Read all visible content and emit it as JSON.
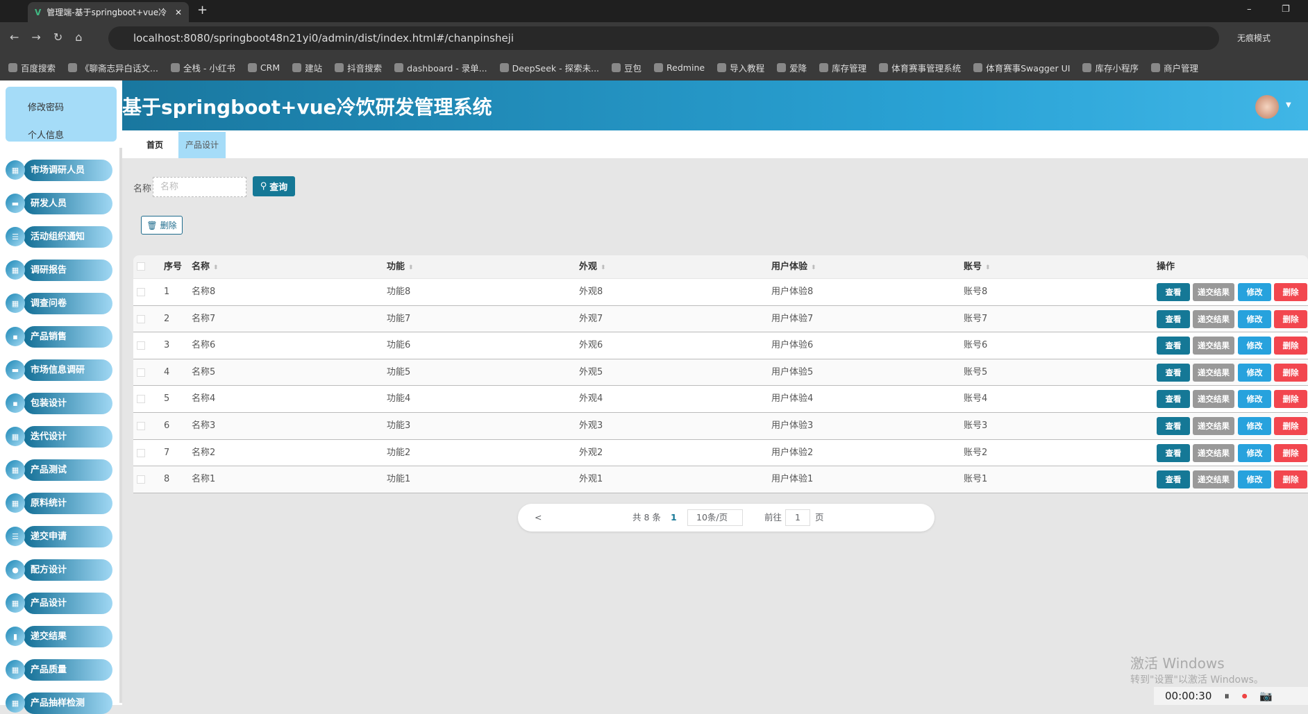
{
  "browser": {
    "tab_title": "管理端-基于springboot+vue冷",
    "url": "localhost:8080/springboot48n21yi0/admin/dist/index.html#/chanpinsheji",
    "incognito": "无痕模式",
    "bookmarks": [
      "百度搜索",
      "《聊斋志异白话文...",
      "全栈 - 小红书",
      "CRM",
      "建站",
      "抖音搜索",
      "dashboard - 录单...",
      "DeepSeek - 探索未...",
      "豆包",
      "Redmine",
      "导入教程",
      "爱降",
      "库存管理",
      "体育赛事管理系统",
      "体育赛事Swagger UI",
      "库存小程序",
      "商户管理"
    ]
  },
  "header": {
    "title": "基于springboot+vue冷饮研发管理系统"
  },
  "profile_menu": [
    "修改密码",
    "个人信息"
  ],
  "sidebar": [
    "市场调研人员",
    "研发人员",
    "活动组织通知",
    "调研报告",
    "调查问卷",
    "产品销售",
    "市场信息调研",
    "包装设计",
    "迭代设计",
    "产品测试",
    "原料统计",
    "递交申请",
    "配方设计",
    "产品设计",
    "递交结果",
    "产品质量",
    "产品抽样检测"
  ],
  "tabs": [
    "首页",
    "产品设计"
  ],
  "search": {
    "label": "名称",
    "placeholder": "名称",
    "button": "查询"
  },
  "delete_button": "删除",
  "table": {
    "headers": [
      "序号",
      "名称",
      "功能",
      "外观",
      "用户体验",
      "账号",
      "操作"
    ],
    "actions": [
      "查看",
      "递交结果",
      "修改",
      "删除"
    ],
    "rows": [
      [
        "1",
        "名称8",
        "功能8",
        "外观8",
        "用户体验8",
        "账号8"
      ],
      [
        "2",
        "名称7",
        "功能7",
        "外观7",
        "用户体验7",
        "账号7"
      ],
      [
        "3",
        "名称6",
        "功能6",
        "外观6",
        "用户体验6",
        "账号6"
      ],
      [
        "4",
        "名称5",
        "功能5",
        "外观5",
        "用户体验5",
        "账号5"
      ],
      [
        "5",
        "名称4",
        "功能4",
        "外观4",
        "用户体验4",
        "账号4"
      ],
      [
        "6",
        "名称3",
        "功能3",
        "外观3",
        "用户体验3",
        "账号3"
      ],
      [
        "7",
        "名称2",
        "功能2",
        "外观2",
        "用户体验2",
        "账号2"
      ],
      [
        "8",
        "名称1",
        "功能1",
        "外观1",
        "用户体验1",
        "账号1"
      ]
    ]
  },
  "pagination": {
    "prev": "<",
    "total": "共 8 条",
    "page": "1",
    "page_size": "10条/页",
    "goto": "前往",
    "goto_value": "1",
    "page_unit": "页"
  },
  "watermark": {
    "line1": "激活 Windows",
    "line2": "转到\"设置\"以激活 Windows。"
  },
  "recorder": {
    "time": "00:00:30"
  },
  "colors": {
    "primary": "#157896",
    "view": "#157896",
    "submit": "#999999",
    "edit": "#27a2dd",
    "delete": "#f2474f"
  }
}
